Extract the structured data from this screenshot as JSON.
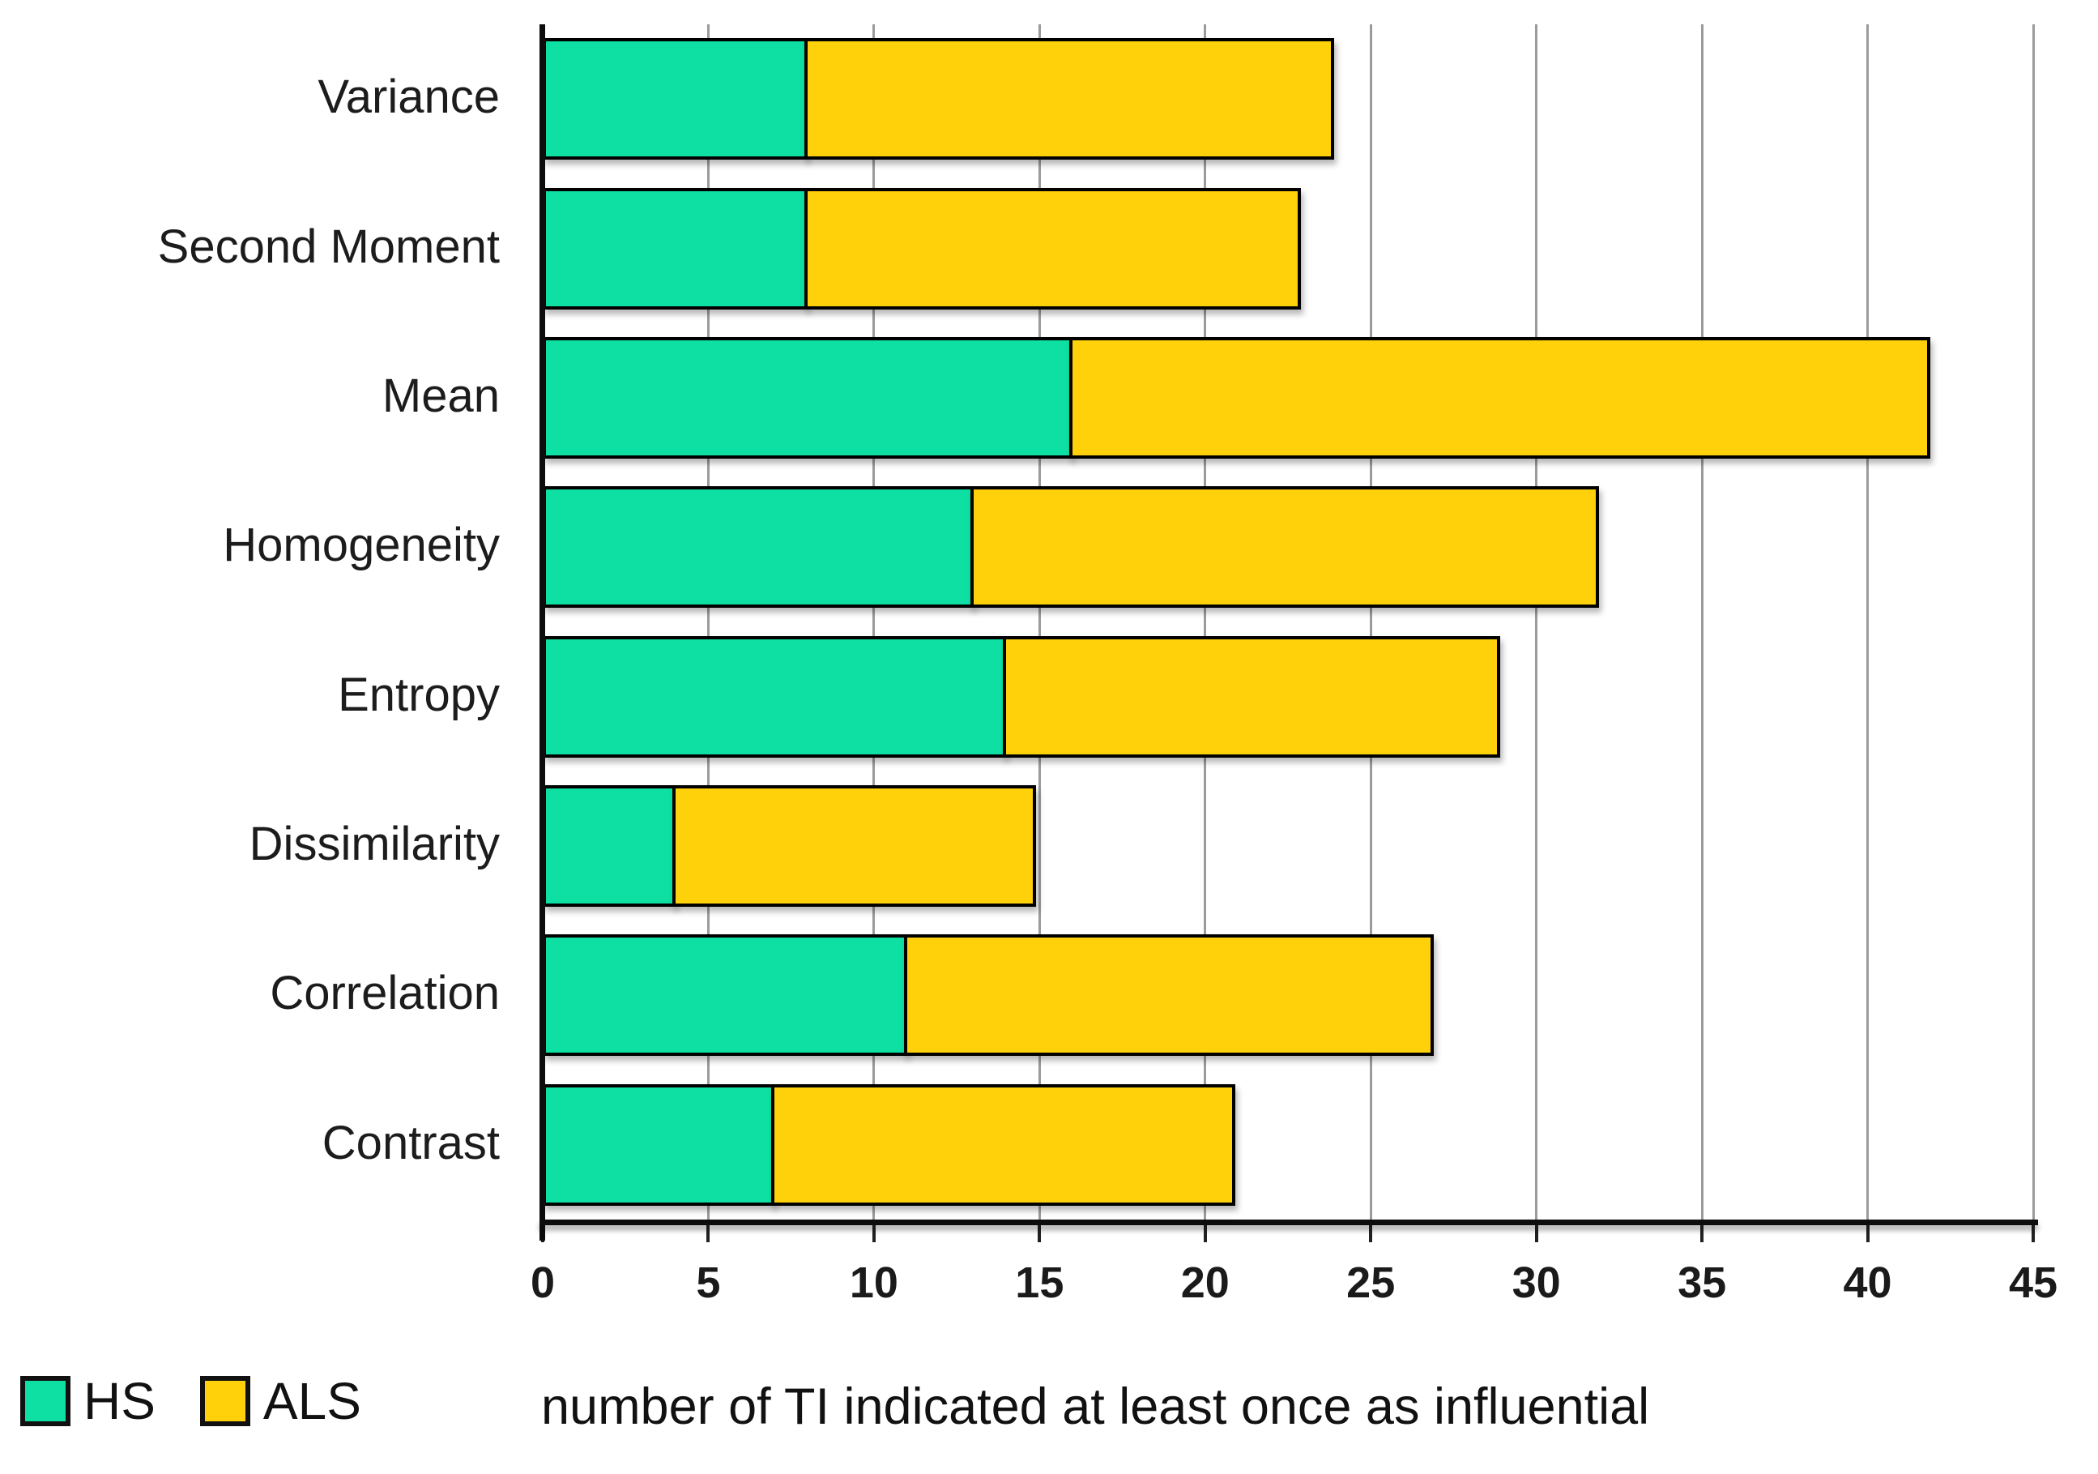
{
  "chart_data": {
    "type": "bar",
    "orientation": "horizontal",
    "stacked": true,
    "title": "",
    "xlabel": "number of TI indicated at least once as influential",
    "ylabel": "",
    "categories": [
      "Variance",
      "Second Moment",
      "Mean",
      "Homogeneity",
      "Entropy",
      "Dissimilarity",
      "Correlation",
      "Contrast"
    ],
    "series": [
      {
        "name": "HS",
        "color": "#0ee0a4",
        "values": [
          8,
          8,
          16,
          13,
          14,
          4,
          11,
          7
        ]
      },
      {
        "name": "ALS",
        "color": "#ffd10a",
        "values": [
          16,
          15,
          26,
          19,
          15,
          11,
          16,
          14
        ]
      }
    ],
    "totals": [
      24,
      23,
      42,
      32,
      29,
      15,
      27,
      21
    ],
    "xlim": [
      0,
      45
    ],
    "x_ticks": [
      "0",
      "5",
      "10",
      "15",
      "20",
      "25",
      "30",
      "35",
      "40",
      "45"
    ],
    "grid": true,
    "gridline_color": "#9b9b9b",
    "bar_border_color": "#000000",
    "legend_position": "bottom-left"
  },
  "legend": {
    "items": [
      {
        "label": "HS",
        "color": "#0ee0a4"
      },
      {
        "label": "ALS",
        "color": "#ffd10a"
      }
    ]
  }
}
